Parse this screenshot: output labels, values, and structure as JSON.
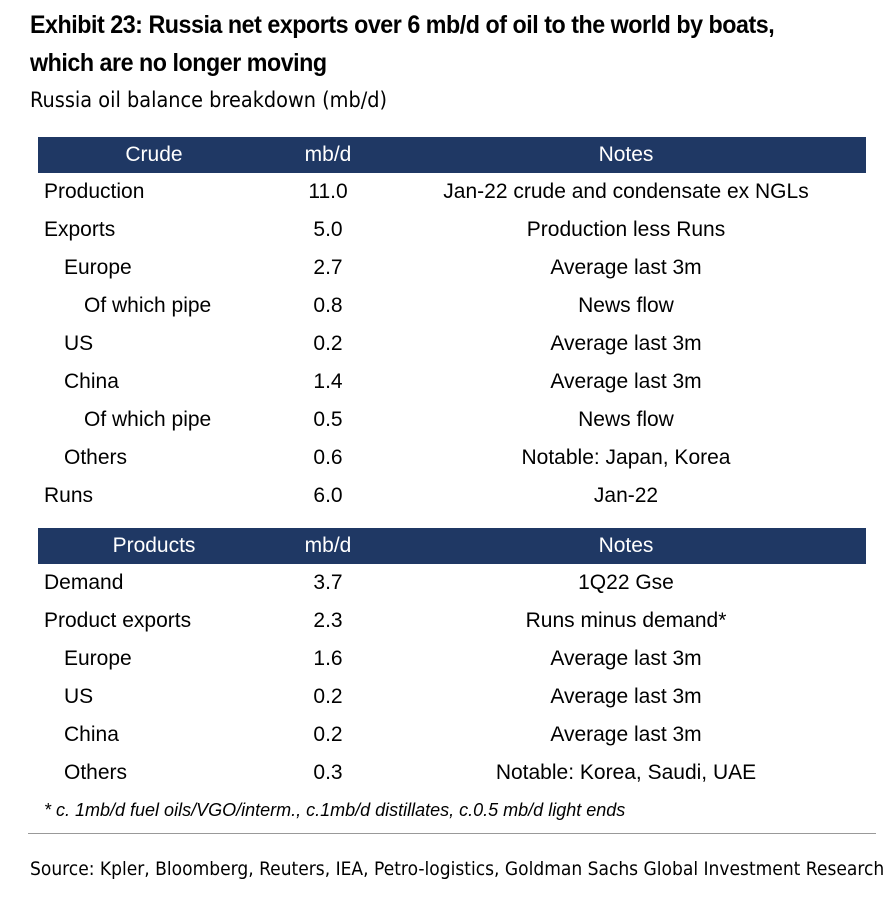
{
  "title_line1": "Exhibit 23: Russia net exports over 6 mb/d of oil to the world by boats,",
  "title_line2": "which are no longer moving",
  "subtitle": "Russia oil balance breakdown (mb/d)",
  "crude": {
    "headers": [
      "Crude",
      "mb/d",
      "Notes"
    ],
    "rows": [
      {
        "label": "Production",
        "value": "11.0",
        "note": "Jan-22 crude and condensate ex NGLs"
      },
      {
        "label": "Exports",
        "value": "5.0",
        "note": "Production less Runs"
      },
      {
        "label": "Europe",
        "value": "2.7",
        "note": "Average last 3m"
      },
      {
        "label": "Of which pipe",
        "value": "0.8",
        "note": "News flow"
      },
      {
        "label": "US",
        "value": "0.2",
        "note": "Average last 3m"
      },
      {
        "label": "China",
        "value": "1.4",
        "note": "Average last 3m"
      },
      {
        "label": "Of which pipe",
        "value": "0.5",
        "note": "News flow"
      },
      {
        "label": "Others",
        "value": "0.6",
        "note": "Notable: Japan, Korea"
      },
      {
        "label": "Runs",
        "value": "6.0",
        "note": "Jan-22"
      }
    ]
  },
  "products": {
    "headers": [
      "Products",
      "mb/d",
      "Notes"
    ],
    "rows": [
      {
        "label": "Demand",
        "value": "3.7",
        "note": "1Q22 Gse"
      },
      {
        "label": "Product exports",
        "value": "2.3",
        "note": "Runs minus demand*"
      },
      {
        "label": "Europe",
        "value": "1.6",
        "note": "Average last 3m"
      },
      {
        "label": "US",
        "value": "0.2",
        "note": "Average last 3m"
      },
      {
        "label": "China",
        "value": "0.2",
        "note": "Average last 3m"
      },
      {
        "label": "Others",
        "value": "0.3",
        "note": "Notable: Korea, Saudi, UAE"
      }
    ]
  },
  "footnote": "* c. 1mb/d fuel oils/VGO/interm., c.1mb/d distillates, c.0.5 mb/d light ends",
  "source": "Source: Kpler, Bloomberg, Reuters, IEA, Petro-logistics, Goldman Sachs Global Investment Research",
  "colors": {
    "header_bg": "#1f3864",
    "header_text": "#ffffff"
  }
}
